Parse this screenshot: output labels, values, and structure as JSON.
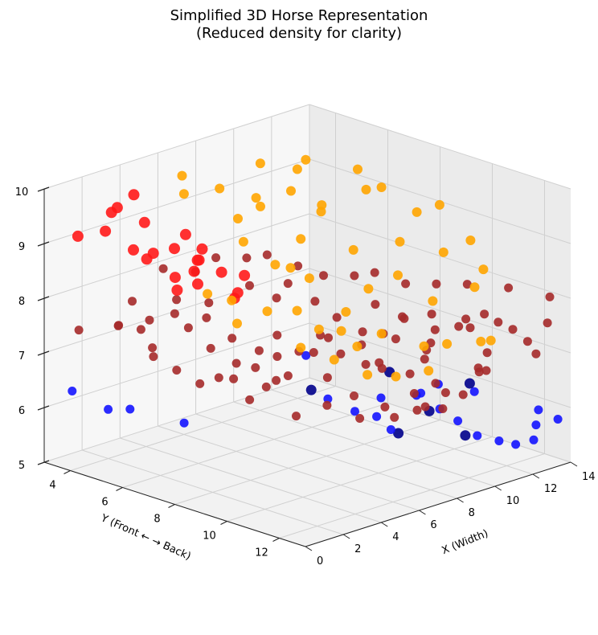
{
  "chart_data": {
    "type": "scatter",
    "projection": "3d",
    "title_line1": "Simplified 3D Horse Representation",
    "title_line2": "(Reduced density for clarity)",
    "xlabel": "X (Width)",
    "ylabel": "Y (Front ← → Back)",
    "zlabel": "",
    "xlim": [
      0,
      14
    ],
    "ylim": [
      3,
      13
    ],
    "zlim": [
      5,
      10
    ],
    "x_ticks": [
      "0",
      "2",
      "4",
      "6",
      "8",
      "10",
      "12",
      "14"
    ],
    "y_ticks": [
      "4",
      "6",
      "8",
      "10",
      "12"
    ],
    "z_ticks": [
      "5",
      "6",
      "7",
      "8",
      "9",
      "10"
    ],
    "grid": true,
    "legend": false,
    "colors": {
      "head": "#ff1a1a",
      "mane": "#ffa500",
      "body": "#a52a2a",
      "legs": "#1414ff",
      "hooves": "#00008b"
    },
    "series": [
      {
        "color": "#ff1a1a",
        "size": 7,
        "points": [
          [
            2.2,
            4.2,
            9.6
          ],
          [
            2.8,
            4.4,
            9.8
          ],
          [
            3.0,
            3.4,
            9.3
          ],
          [
            1.3,
            4.4,
            9.3
          ],
          [
            1.5,
            3.2,
            9.0
          ],
          [
            3.5,
            4.3,
            9.2
          ],
          [
            1.4,
            5.4,
            9.1
          ],
          [
            3.6,
            5.8,
            9.2
          ],
          [
            2.6,
            6.1,
            9.1
          ],
          [
            3.0,
            5.0,
            8.8
          ],
          [
            1.0,
            6.2,
            9.1
          ],
          [
            4.2,
            6.0,
            8.9
          ],
          [
            2.5,
            6.2,
            8.6
          ],
          [
            4.5,
            5.6,
            8.6
          ],
          [
            3.5,
            6.2,
            8.6
          ],
          [
            5.0,
            5.3,
            8.5
          ],
          [
            1.5,
            7.0,
            8.6
          ],
          [
            3.0,
            6.7,
            8.5
          ],
          [
            4.5,
            7.4,
            8.6
          ],
          [
            5.5,
            5.8,
            8.3
          ],
          [
            3.7,
            7.6,
            8.3
          ],
          [
            4.7,
            7.0,
            8.2
          ]
        ]
      },
      {
        "color": "#ffa500",
        "size": 6,
        "points": [
          [
            7.0,
            3.2,
            9.5
          ],
          [
            6.5,
            5.0,
            9.6
          ],
          [
            6.0,
            4.0,
            9.4
          ],
          [
            7.6,
            5.6,
            9.4
          ],
          [
            8.2,
            6.5,
            9.6
          ],
          [
            9.2,
            4.6,
            9.7
          ],
          [
            10.6,
            5.0,
            9.5
          ],
          [
            11.6,
            4.6,
            9.5
          ],
          [
            12.7,
            6.7,
            9.2
          ],
          [
            11.2,
            7.2,
            9.4
          ],
          [
            13.1,
            5.5,
            9.3
          ],
          [
            13.7,
            8.2,
            9.0
          ],
          [
            12.5,
            8.2,
            9.0
          ],
          [
            10.1,
            6.3,
            9.1
          ],
          [
            9.1,
            7.0,
            9.2
          ],
          [
            7.2,
            7.6,
            9.0
          ],
          [
            8.6,
            8.6,
            8.8
          ],
          [
            10.5,
            9.0,
            8.8
          ],
          [
            11.7,
            9.8,
            8.6
          ],
          [
            13.4,
            9.6,
            8.6
          ],
          [
            12.7,
            10.6,
            8.3
          ],
          [
            11.0,
            11.5,
            8.3
          ],
          [
            9.2,
            11.2,
            8.2
          ],
          [
            8.6,
            10.3,
            8.6
          ],
          [
            7.6,
            9.9,
            8.4
          ],
          [
            6.0,
            8.8,
            8.6
          ],
          [
            5.3,
            8.0,
            8.8
          ],
          [
            6.8,
            7.5,
            8.5
          ],
          [
            6.0,
            10.2,
            8.2
          ],
          [
            5.2,
            10.6,
            8.0
          ],
          [
            4.3,
            10.4,
            8.1
          ],
          [
            4.8,
            11.5,
            7.9
          ],
          [
            6.5,
            11.2,
            7.9
          ],
          [
            7.5,
            12.1,
            7.7
          ],
          [
            8.3,
            12.4,
            7.7
          ],
          [
            10.2,
            12.7,
            7.6
          ],
          [
            9.4,
            12.9,
            7.7
          ],
          [
            3.5,
            9.0,
            8.3
          ],
          [
            3.0,
            8.0,
            8.4
          ],
          [
            4.8,
            9.2,
            8.2
          ],
          [
            5.6,
            12.4,
            7.4
          ],
          [
            4.1,
            12.4,
            7.6
          ],
          [
            6.5,
            13.0,
            7.5
          ],
          [
            2.6,
            8.5,
            8.1
          ],
          [
            3.2,
            10.5,
            7.9
          ],
          [
            4.0,
            11.2,
            7.7
          ],
          [
            5.4,
            6.5,
            9.4
          ],
          [
            2.0,
            7.8,
            8.6
          ],
          [
            7.0,
            6.2,
            9.4
          ],
          [
            5.0,
            7.0,
            9.1
          ]
        ]
      },
      {
        "color": "#a52a2a",
        "size": 5.5,
        "points": [
          [
            1.2,
            5.5,
            8.2
          ],
          [
            0.6,
            5.4,
            7.8
          ],
          [
            1.8,
            5.4,
            7.6
          ],
          [
            2.4,
            5.4,
            7.2
          ],
          [
            2.2,
            6.4,
            8.0
          ],
          [
            3.2,
            6.2,
            7.6
          ],
          [
            3.0,
            7.2,
            7.4
          ],
          [
            2.6,
            7.8,
            7.0
          ],
          [
            3.8,
            7.6,
            7.1
          ],
          [
            3.6,
            6.6,
            7.8
          ],
          [
            4.4,
            7.0,
            7.4
          ],
          [
            5.0,
            7.6,
            7.2
          ],
          [
            4.8,
            8.4,
            6.8
          ],
          [
            5.4,
            8.0,
            7.5
          ],
          [
            6.0,
            8.4,
            7.2
          ],
          [
            6.4,
            9.2,
            6.8
          ],
          [
            7.0,
            8.8,
            7.4
          ],
          [
            6.2,
            7.4,
            8.0
          ],
          [
            5.6,
            6.8,
            8.2
          ],
          [
            6.8,
            7.4,
            8.2
          ],
          [
            7.4,
            8.0,
            7.9
          ],
          [
            8.0,
            8.4,
            7.6
          ],
          [
            8.2,
            9.2,
            7.2
          ],
          [
            7.6,
            9.8,
            7.0
          ],
          [
            8.8,
            9.6,
            7.4
          ],
          [
            9.2,
            9.0,
            7.8
          ],
          [
            9.8,
            9.6,
            7.6
          ],
          [
            10.2,
            10.4,
            7.2
          ],
          [
            9.6,
            10.6,
            7.0
          ],
          [
            10.8,
            10.0,
            7.6
          ],
          [
            11.4,
            10.6,
            7.4
          ],
          [
            11.8,
            11.4,
            7.0
          ],
          [
            12.2,
            11.0,
            7.6
          ],
          [
            11.2,
            11.8,
            6.8
          ],
          [
            12.6,
            11.8,
            7.4
          ],
          [
            13.0,
            12.4,
            7.0
          ],
          [
            13.6,
            12.4,
            7.5
          ],
          [
            14.0,
            12.2,
            7.9
          ],
          [
            13.2,
            11.2,
            8.0
          ],
          [
            12.4,
            10.2,
            8.0
          ],
          [
            11.6,
            9.6,
            8.0
          ],
          [
            10.8,
            9.0,
            8.0
          ],
          [
            10.0,
            8.4,
            8.2
          ],
          [
            9.2,
            8.2,
            8.2
          ],
          [
            8.4,
            7.6,
            8.2
          ],
          [
            7.6,
            7.2,
            8.4
          ],
          [
            6.8,
            6.6,
            8.6
          ],
          [
            6.0,
            6.4,
            8.6
          ],
          [
            7.2,
            10.6,
            7.2
          ],
          [
            8.0,
            11.2,
            7.0
          ],
          [
            8.8,
            11.6,
            6.8
          ],
          [
            7.4,
            11.8,
            6.8
          ],
          [
            6.8,
            11.0,
            7.2
          ],
          [
            6.0,
            10.0,
            7.4
          ],
          [
            5.4,
            9.4,
            7.4
          ],
          [
            4.6,
            9.0,
            7.0
          ],
          [
            4.0,
            8.6,
            6.8
          ],
          [
            3.4,
            8.4,
            6.6
          ],
          [
            4.2,
            9.6,
            6.4
          ],
          [
            5.0,
            10.2,
            6.6
          ],
          [
            5.6,
            10.8,
            6.8
          ],
          [
            6.4,
            11.4,
            6.6
          ],
          [
            7.0,
            12.2,
            6.6
          ],
          [
            7.8,
            12.6,
            6.6
          ],
          [
            8.6,
            12.8,
            6.8
          ],
          [
            9.4,
            12.8,
            7.2
          ],
          [
            10.0,
            12.4,
            7.0
          ],
          [
            8.8,
            10.4,
            7.8
          ],
          [
            9.6,
            11.0,
            7.6
          ],
          [
            10.4,
            11.6,
            7.8
          ],
          [
            11.0,
            12.4,
            7.8
          ],
          [
            12.0,
            12.8,
            7.4
          ],
          [
            5.2,
            5.8,
            8.6
          ],
          [
            4.4,
            5.6,
            8.4
          ],
          [
            3.8,
            4.8,
            8.4
          ],
          [
            1.0,
            3.6,
            7.4
          ],
          [
            2.0,
            4.4,
            7.5
          ],
          [
            2.8,
            5.0,
            7.6
          ],
          [
            3.4,
            5.6,
            8.0
          ],
          [
            4.0,
            6.4,
            8.0
          ],
          [
            5.2,
            9.8,
            7.8
          ],
          [
            6.6,
            10.4,
            7.8
          ],
          [
            7.8,
            10.8,
            7.6
          ],
          [
            8.6,
            11.4,
            7.4
          ],
          [
            9.8,
            12.2,
            7.8
          ],
          [
            3.2,
            9.6,
            7.6
          ],
          [
            2.6,
            9.2,
            7.4
          ],
          [
            2.0,
            8.8,
            7.2
          ],
          [
            1.6,
            7.8,
            7.0
          ],
          [
            1.2,
            7.2,
            7.2
          ],
          [
            0.8,
            6.6,
            7.4
          ],
          [
            4.8,
            11.6,
            6.6
          ],
          [
            5.8,
            12.2,
            6.6
          ],
          [
            6.6,
            12.8,
            6.8
          ],
          [
            7.4,
            13.0,
            7.0
          ]
        ]
      },
      {
        "color": "#1414ff",
        "size": 5.5,
        "points": [
          [
            1.2,
            3.2,
            6.2
          ],
          [
            2.0,
            4.0,
            5.9
          ],
          [
            2.6,
            4.4,
            5.9
          ],
          [
            3.8,
            5.6,
            5.7
          ],
          [
            7.2,
            7.8,
            6.9
          ],
          [
            7.8,
            8.2,
            6.1
          ],
          [
            8.4,
            8.8,
            5.9
          ],
          [
            9.0,
            9.2,
            5.8
          ],
          [
            9.2,
            9.6,
            5.6
          ],
          [
            10.0,
            10.0,
            6.2
          ],
          [
            10.4,
            10.6,
            6.0
          ],
          [
            10.8,
            11.0,
            5.8
          ],
          [
            11.0,
            11.6,
            5.6
          ],
          [
            11.6,
            12.0,
            5.5
          ],
          [
            12.2,
            12.2,
            5.4
          ],
          [
            12.6,
            12.6,
            5.5
          ],
          [
            13.0,
            12.4,
            5.7
          ],
          [
            13.4,
            12.2,
            5.9
          ],
          [
            13.6,
            12.8,
            5.8
          ],
          [
            8.4,
            9.8,
            6.3
          ],
          [
            9.4,
            10.6,
            6.4
          ],
          [
            10.6,
            10.4,
            6.4
          ],
          [
            11.4,
            11.2,
            6.3
          ]
        ]
      },
      {
        "color": "#00008b",
        "size": 6.5,
        "points": [
          [
            7.2,
            8.0,
            6.3
          ],
          [
            9.4,
            9.4,
            6.6
          ],
          [
            10.6,
            11.6,
            6.6
          ],
          [
            10.4,
            10.2,
            5.9
          ],
          [
            11.8,
            8.0,
            5.0
          ],
          [
            13.4,
            9.4,
            5.0
          ]
        ]
      }
    ]
  }
}
